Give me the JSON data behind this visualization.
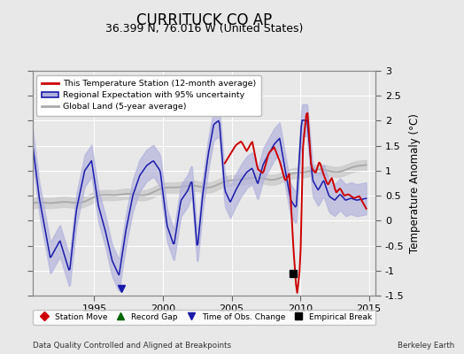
{
  "title": "CURRITUCK CO AP",
  "subtitle": "36.399 N, 76.016 W (United States)",
  "ylabel": "Temperature Anomaly (°C)",
  "ylabel_fontsize": 8.5,
  "title_fontsize": 12,
  "subtitle_fontsize": 9,
  "xlim": [
    1990.5,
    2015.5
  ],
  "ylim": [
    -1.5,
    3.0
  ],
  "yticks": [
    -1.5,
    -1.0,
    -0.5,
    0.0,
    0.5,
    1.0,
    1.5,
    2.0,
    2.5,
    3.0
  ],
  "xticks": [
    1995,
    2000,
    2005,
    2010,
    2015
  ],
  "bg_color": "#e8e8e8",
  "plot_bg_color": "#e8e8e8",
  "grid_color": "#ffffff",
  "red_line_color": "#cc0000",
  "blue_line_color": "#1a1aaa",
  "blue_fill_color": "#b0b0dd",
  "gray_line_color": "#aaaaaa",
  "gray_fill_color": "#cccccc",
  "bottom_text_left": "Data Quality Controlled and Aligned at Breakpoints",
  "bottom_text_right": "Berkeley Earth",
  "marker_time_obs_year": 1997.0,
  "marker_empirical_break_year": 2009.5,
  "marker_empirical_break_val": -1.05
}
